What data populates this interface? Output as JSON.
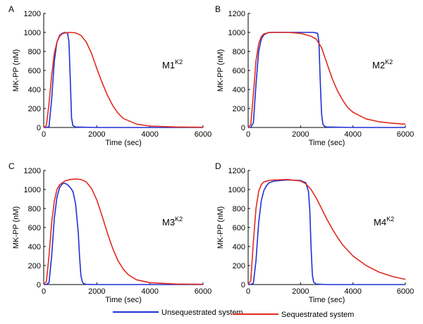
{
  "chart_data": [
    {
      "type": "line",
      "panel_letter": "A",
      "model_label": "M1",
      "model_superscript": "K2",
      "xlabel": "Time (sec)",
      "ylabel": "MK-PP (nM)",
      "xlim": [
        0,
        6000
      ],
      "ylim": [
        0,
        1200
      ],
      "xticks": [
        0,
        2000,
        4000,
        6000
      ],
      "yticks": [
        0,
        200,
        400,
        600,
        800,
        1000,
        1200
      ],
      "grid": false,
      "series": [
        {
          "name": "Unsequestrated system",
          "color": "#1f2fd6",
          "x": [
            0,
            100,
            200,
            300,
            400,
            500,
            600,
            700,
            800,
            900,
            950,
            1000,
            1050,
            1100,
            1200,
            2000,
            4000,
            6000
          ],
          "y": [
            0,
            0,
            10,
            300,
            700,
            900,
            970,
            990,
            1000,
            990,
            900,
            500,
            100,
            20,
            5,
            0,
            0,
            0
          ]
        },
        {
          "name": "Sequestrated system",
          "color": "#e02b1e",
          "x": [
            0,
            100,
            200,
            300,
            400,
            500,
            600,
            700,
            800,
            900,
            1000,
            1200,
            1400,
            1600,
            1800,
            2000,
            2200,
            2400,
            2600,
            2800,
            3000,
            3500,
            4000,
            5000,
            6000
          ],
          "y": [
            0,
            20,
            250,
            550,
            780,
            900,
            960,
            985,
            995,
            998,
            1000,
            995,
            970,
            900,
            780,
            620,
            470,
            340,
            230,
            150,
            95,
            35,
            15,
            5,
            2
          ]
        }
      ]
    },
    {
      "type": "line",
      "panel_letter": "B",
      "model_label": "M2",
      "model_superscript": "K2",
      "xlabel": "Time (sec)",
      "ylabel": "MK-PP (nM)",
      "xlim": [
        0,
        6000
      ],
      "ylim": [
        0,
        1200
      ],
      "xticks": [
        0,
        2000,
        4000,
        6000
      ],
      "yticks": [
        0,
        200,
        400,
        600,
        800,
        1000,
        1200
      ],
      "grid": false,
      "series": [
        {
          "name": "Unsequestrated system",
          "color": "#1f2fd6",
          "x": [
            0,
            100,
            200,
            300,
            400,
            500,
            600,
            700,
            800,
            1000,
            1500,
            2000,
            2500,
            2650,
            2700,
            2750,
            2800,
            2850,
            2900,
            3000,
            4000,
            6000
          ],
          "y": [
            0,
            0,
            50,
            450,
            800,
            930,
            975,
            990,
            1000,
            1000,
            1000,
            1000,
            1000,
            990,
            900,
            500,
            150,
            40,
            15,
            5,
            0,
            0
          ]
        },
        {
          "name": "Sequestrated system",
          "color": "#e02b1e",
          "x": [
            0,
            100,
            200,
            300,
            400,
            500,
            600,
            800,
            1000,
            1500,
            2000,
            2400,
            2600,
            2800,
            3000,
            3200,
            3400,
            3600,
            3800,
            4000,
            4500,
            5000,
            5500,
            6000
          ],
          "y": [
            0,
            30,
            350,
            700,
            880,
            955,
            985,
            998,
            1000,
            1000,
            990,
            960,
            930,
            840,
            680,
            520,
            390,
            290,
            210,
            160,
            90,
            60,
            45,
            35
          ]
        }
      ]
    },
    {
      "type": "line",
      "panel_letter": "C",
      "model_label": "M3",
      "model_superscript": "K2",
      "xlabel": "Time (sec)",
      "ylabel": "MK-PP (nM)",
      "xlim": [
        0,
        6000
      ],
      "ylim": [
        0,
        1200
      ],
      "xticks": [
        0,
        2000,
        4000,
        6000
      ],
      "yticks": [
        0,
        200,
        400,
        600,
        800,
        1000,
        1200
      ],
      "grid": false,
      "series": [
        {
          "name": "Unsequestrated system",
          "color": "#1f2fd6",
          "x": [
            0,
            100,
            200,
            300,
            400,
            500,
            600,
            700,
            800,
            900,
            1000,
            1100,
            1200,
            1300,
            1350,
            1400,
            1450,
            1500,
            1600,
            2000,
            4000,
            6000
          ],
          "y": [
            0,
            0,
            20,
            300,
            700,
            920,
            1020,
            1060,
            1065,
            1050,
            1020,
            980,
            850,
            550,
            300,
            100,
            30,
            10,
            2,
            0,
            0,
            0
          ]
        },
        {
          "name": "Sequestrated system",
          "color": "#e02b1e",
          "x": [
            0,
            100,
            200,
            300,
            400,
            500,
            600,
            800,
            1000,
            1200,
            1400,
            1600,
            1800,
            2000,
            2200,
            2400,
            2600,
            2800,
            3000,
            3200,
            3500,
            4000,
            5000,
            6000
          ],
          "y": [
            0,
            30,
            300,
            650,
            880,
            1000,
            1050,
            1090,
            1105,
            1110,
            1105,
            1080,
            1010,
            890,
            720,
            540,
            380,
            250,
            160,
            100,
            50,
            20,
            5,
            2
          ]
        }
      ]
    },
    {
      "type": "line",
      "panel_letter": "D",
      "model_label": "M4",
      "model_superscript": "K2",
      "xlabel": "Time (sec)",
      "ylabel": "MK-PP (nM)",
      "xlim": [
        0,
        6000
      ],
      "ylim": [
        0,
        1200
      ],
      "xticks": [
        0,
        2000,
        4000,
        6000
      ],
      "yticks": [
        0,
        200,
        400,
        600,
        800,
        1000,
        1200
      ],
      "grid": false,
      "series": [
        {
          "name": "Unsequestrated system",
          "color": "#1f2fd6",
          "x": [
            0,
            100,
            200,
            300,
            400,
            500,
            600,
            700,
            800,
            1000,
            1500,
            2000,
            2200,
            2300,
            2350,
            2400,
            2450,
            2500,
            2600,
            3000,
            4000,
            6000
          ],
          "y": [
            0,
            0,
            15,
            250,
            650,
            880,
            990,
            1040,
            1070,
            1090,
            1100,
            1095,
            1070,
            980,
            800,
            400,
            100,
            25,
            5,
            0,
            0,
            0
          ]
        },
        {
          "name": "Sequestrated system",
          "color": "#e02b1e",
          "x": [
            0,
            100,
            200,
            300,
            400,
            500,
            600,
            800,
            1000,
            1500,
            2000,
            2200,
            2400,
            2600,
            2800,
            3000,
            3200,
            3400,
            3600,
            4000,
            4500,
            5000,
            5500,
            6000
          ],
          "y": [
            0,
            40,
            450,
            800,
            980,
            1050,
            1080,
            1095,
            1100,
            1105,
            1090,
            1060,
            1000,
            910,
            800,
            690,
            590,
            500,
            420,
            300,
            200,
            130,
            85,
            55
          ]
        }
      ]
    }
  ],
  "legend": {
    "items": [
      {
        "label": "Unsequestrated system",
        "color": "#1f2fd6"
      },
      {
        "label": "Sequestrated system",
        "color": "#e02b1e"
      }
    ]
  }
}
